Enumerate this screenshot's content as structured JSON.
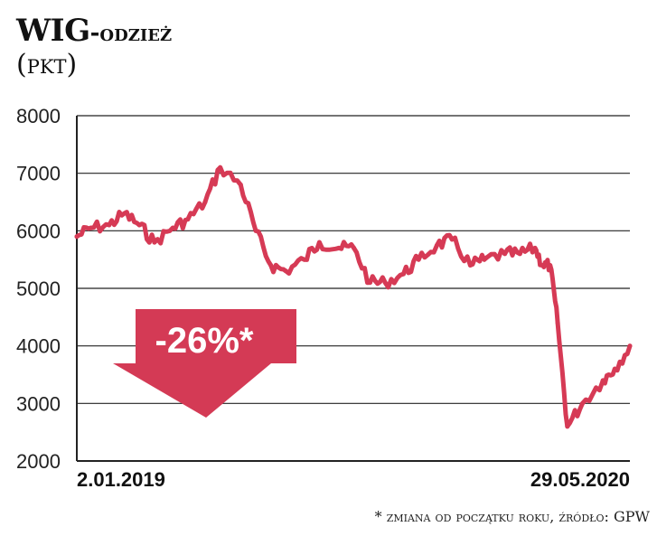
{
  "header": {
    "title_main": "WIG",
    "title_suffix": "-odzież",
    "subtitle": "(pkt)"
  },
  "footnote": "* zmiana od początku roku, źródło: GPW",
  "colors": {
    "line": "#d63a55",
    "arrow": "#d43a55",
    "grid": "#222222"
  },
  "chart_data": {
    "type": "line",
    "title": "WIG-odzież",
    "ylabel": "(pkt)",
    "ylim": [
      2000,
      8000
    ],
    "yticks": [
      2000,
      3000,
      4000,
      5000,
      6000,
      7000,
      8000
    ],
    "x_start_label": "2.01.2019",
    "x_end_label": "29.05.2020",
    "annotation": "-26%*",
    "series": [
      {
        "name": "",
        "x": [
          "2019-01-02",
          "2019-01-15",
          "2019-02-01",
          "2019-02-15",
          "2019-03-01",
          "2019-03-15",
          "2019-04-01",
          "2019-04-15",
          "2019-05-01",
          "2019-05-15",
          "2019-06-03",
          "2019-06-17",
          "2019-07-01",
          "2019-07-15",
          "2019-08-01",
          "2019-08-15",
          "2019-09-02",
          "2019-09-16",
          "2019-10-01",
          "2019-10-15",
          "2019-11-01",
          "2019-11-15",
          "2019-12-02",
          "2019-12-16",
          "2020-01-02",
          "2020-01-15",
          "2020-02-03",
          "2020-02-17",
          "2020-03-02",
          "2020-03-09",
          "2020-03-16",
          "2020-03-23",
          "2020-04-01",
          "2020-04-15",
          "2020-05-04",
          "2020-05-15",
          "2020-05-29"
        ],
        "values": [
          5900,
          6050,
          6100,
          6300,
          6100,
          5800,
          6050,
          6200,
          6500,
          7100,
          6800,
          6000,
          5400,
          5300,
          5500,
          5800,
          5700,
          5700,
          5100,
          5100,
          5250,
          5500,
          5750,
          5850,
          5400,
          5500,
          5600,
          5600,
          5700,
          5400,
          5400,
          4400,
          2600,
          3000,
          3400,
          3600,
          4000
        ]
      }
    ]
  }
}
